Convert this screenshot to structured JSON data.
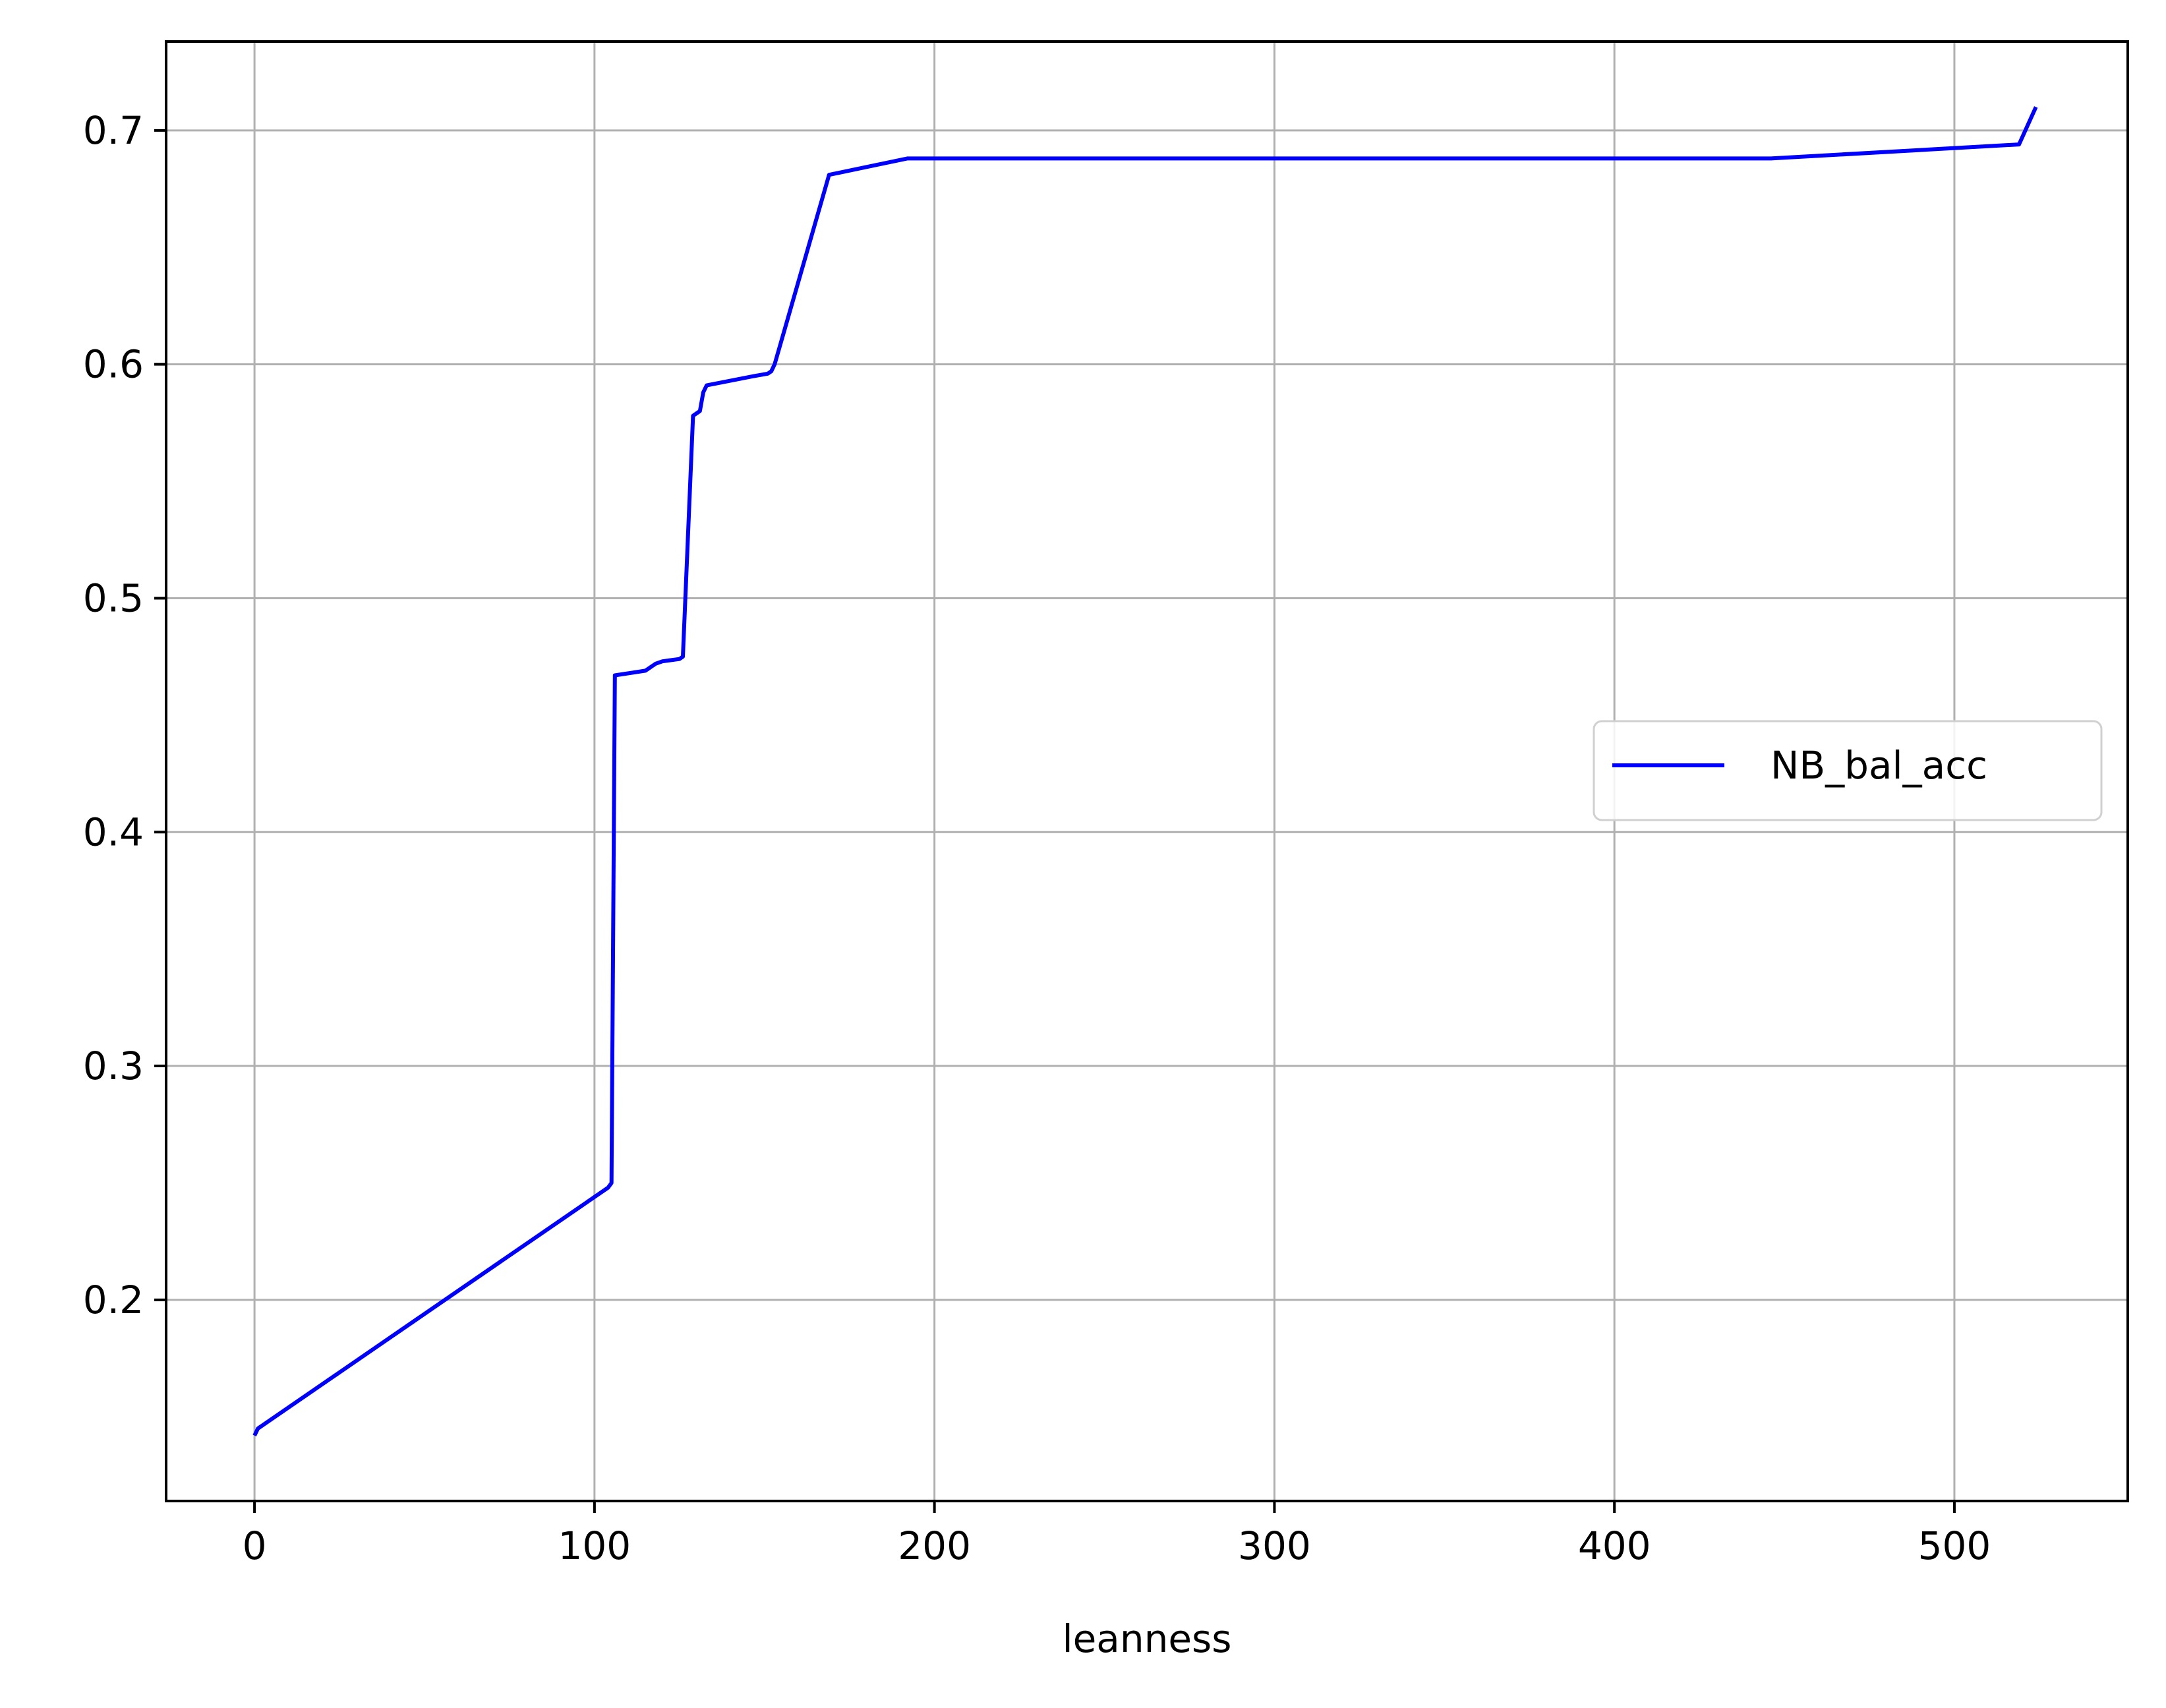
{
  "chart_data": {
    "type": "line",
    "title": "",
    "xlabel": "leanness",
    "ylabel": "",
    "xlim": [
      -26,
      551
    ],
    "ylim": [
      0.114,
      0.738
    ],
    "xticks": [
      0,
      100,
      200,
      300,
      400,
      500
    ],
    "yticks": [
      0.2,
      0.3,
      0.4,
      0.5,
      0.6,
      0.7
    ],
    "grid": true,
    "legend": "center-right",
    "series": [
      {
        "name": "NB_bal_acc",
        "color": "#0000ff",
        "x": [
          0,
          1,
          104,
          105,
          106,
          115,
          118,
          120,
          125,
          126,
          129,
          130,
          131,
          132,
          133,
          147,
          151,
          152,
          153,
          169,
          192,
          446,
          519,
          524
        ],
        "y": [
          0.142,
          0.145,
          0.248,
          0.25,
          0.467,
          0.469,
          0.472,
          0.473,
          0.474,
          0.475,
          0.578,
          0.579,
          0.58,
          0.588,
          0.591,
          0.595,
          0.596,
          0.597,
          0.6,
          0.681,
          0.688,
          0.688,
          0.694,
          0.71
        ]
      }
    ]
  }
}
